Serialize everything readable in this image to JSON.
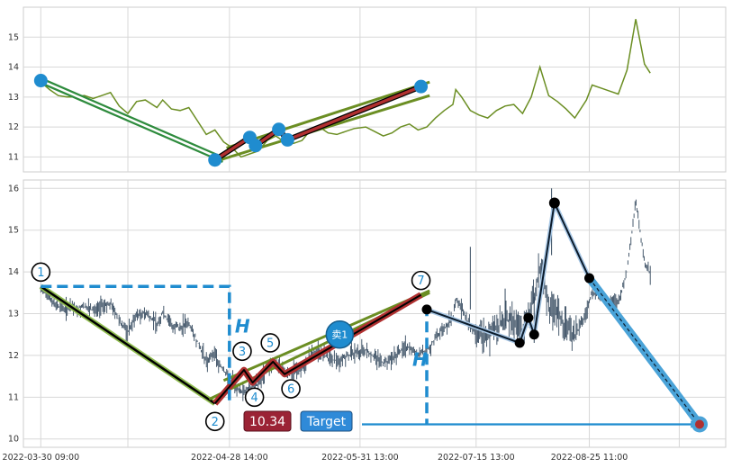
{
  "chart_data": [
    {
      "type": "line",
      "panel": "top",
      "ylim": [
        10.5,
        16.0
      ],
      "yticks": [
        "11",
        "12",
        "13",
        "14",
        "15"
      ],
      "grid": true,
      "line_color": "#6b8e23",
      "series": [
        {
          "x": [
            0,
            3,
            6,
            9,
            12,
            15,
            18,
            21,
            24,
            27,
            30,
            33,
            36,
            40,
            42,
            45,
            48,
            51,
            54,
            57,
            60,
            63,
            66,
            69,
            72,
            75,
            78,
            81,
            84,
            87,
            90,
            93,
            96,
            99,
            102,
            105,
            108,
            112,
            115,
            118,
            121,
            124,
            127,
            130,
            133,
            136,
            139,
            142,
            143,
            145,
            148,
            151,
            154,
            157,
            160,
            163,
            166,
            169,
            172,
            175,
            178,
            181,
            184,
            188,
            190,
            193,
            196,
            199,
            202,
            205,
            208,
            210
          ],
          "y": [
            13.5,
            13.25,
            13.05,
            13.0,
            13.0,
            13.05,
            12.95,
            13.05,
            13.15,
            12.7,
            12.45,
            12.85,
            12.9,
            12.65,
            12.9,
            12.6,
            12.55,
            12.65,
            12.2,
            11.75,
            11.9,
            11.5,
            11.3,
            11.0,
            11.1,
            11.2,
            11.55,
            11.7,
            11.5,
            11.45,
            11.55,
            11.9,
            12.0,
            11.8,
            11.75,
            11.85,
            11.95,
            12.0,
            11.85,
            11.7,
            11.8,
            12.0,
            12.1,
            11.9,
            12.0,
            12.3,
            12.55,
            12.75,
            13.25,
            13.0,
            12.55,
            12.4,
            12.3,
            12.55,
            12.7,
            12.75,
            12.45,
            13.0,
            14.0,
            13.05,
            12.85,
            12.6,
            12.3,
            12.9,
            13.4,
            13.3,
            13.2,
            13.1,
            13.9,
            15.6,
            14.1,
            13.8
          ]
        }
      ],
      "pivots": [
        {
          "x": 0,
          "y": 13.55
        },
        {
          "x": 60,
          "y": 10.9
        },
        {
          "x": 72,
          "y": 11.65
        },
        {
          "x": 74,
          "y": 11.38
        },
        {
          "x": 82,
          "y": 11.92
        },
        {
          "x": 85,
          "y": 11.57
        },
        {
          "x": 131,
          "y": 13.35
        }
      ],
      "channel": {
        "upper": [
          {
            "x": 64,
            "y": 11.3
          },
          {
            "x": 134,
            "y": 13.5
          }
        ],
        "lower": [
          {
            "x": 60,
            "y": 10.85
          },
          {
            "x": 134,
            "y": 13.05
          }
        ]
      }
    },
    {
      "type": "line",
      "panel": "bottom",
      "ylim": [
        9.8,
        16.2
      ],
      "yticks": [
        "10",
        "11",
        "12",
        "13",
        "14",
        "15",
        "16"
      ],
      "xticks": [
        "2022-03-30 09:00",
        "2022-04-28 14:00",
        "2022-05-31 13:00",
        "2022-07-15 13:00",
        "2022-08-25 11:00"
      ],
      "grid": true,
      "price_color": "#34495e",
      "pattern_points": [
        {
          "label": "1",
          "x": 0,
          "y": 13.65
        },
        {
          "label": "2",
          "x": 60,
          "y": 10.85
        },
        {
          "label": "3",
          "x": 70,
          "y": 11.65
        },
        {
          "label": "4",
          "x": 73,
          "y": 11.35
        },
        {
          "label": "5",
          "x": 80,
          "y": 11.85
        },
        {
          "label": "6",
          "x": 84,
          "y": 11.55
        },
        {
          "label": "7",
          "x": 131,
          "y": 13.45
        }
      ],
      "height_H_label": "H",
      "post_path": [
        {
          "x": 133,
          "y": 13.1
        },
        {
          "x": 165,
          "y": 12.3
        },
        {
          "x": 168,
          "y": 12.9
        },
        {
          "x": 170,
          "y": 12.5
        },
        {
          "x": 177,
          "y": 15.65
        },
        {
          "x": 189,
          "y": 13.85
        },
        {
          "x": 227,
          "y": 10.35
        }
      ],
      "sell_label": "卖1",
      "price_badge": "10.34",
      "target_label": "Target"
    }
  ],
  "colors": {
    "green": "#2e8b3d",
    "olive": "#6b8e23",
    "red": "#b03030",
    "blue": "#1f8ccf",
    "black": "#000000",
    "badge_red": "#9b2335",
    "badge_blue": "#2f8ad8"
  }
}
